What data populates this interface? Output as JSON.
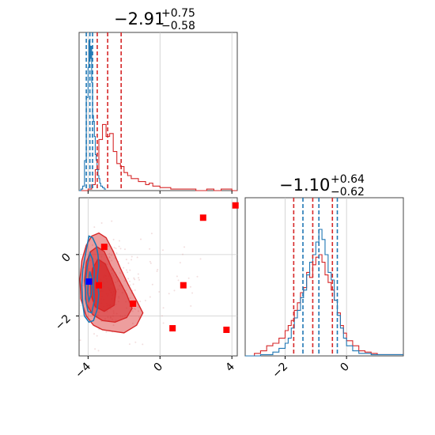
{
  "chart_data": {
    "type": "corner",
    "colors": {
      "red": "#d62728",
      "blue": "#1f77b4",
      "marker_red": "#ff0000",
      "marker_blue": "#0000ff",
      "grid": "#cccccc"
    },
    "param_x": {
      "title": {
        "median": "−2.91",
        "plus": "+0.75",
        "minus": "−0.58"
      },
      "range": [
        -4.5,
        4.3
      ],
      "ticks": [
        -4,
        0,
        4
      ],
      "tick_labels": [
        "−4",
        "0",
        "4"
      ],
      "red_quantiles": [
        -3.49,
        -2.91,
        -2.16
      ],
      "blue_quantiles": [
        -4.1,
        -3.9,
        -3.75
      ],
      "red_hist": {
        "x": [
          -4.5,
          -4.2,
          -4.0,
          -3.8,
          -3.6,
          -3.4,
          -3.2,
          -3.0,
          -2.8,
          -2.6,
          -2.4,
          -2.2,
          -2.0,
          -1.8,
          -1.6,
          -1.4,
          -1.2,
          -1.0,
          -0.8,
          -0.6,
          -0.4,
          -0.2,
          0.0,
          0.2,
          0.6,
          1.0,
          1.4,
          2.0,
          2.6,
          3.0,
          3.4,
          4.0,
          4.3
        ],
        "y": [
          0,
          0,
          0.01,
          0.04,
          0.14,
          0.34,
          0.44,
          0.36,
          0.38,
          0.26,
          0.18,
          0.16,
          0.12,
          0.1,
          0.08,
          0.08,
          0.06,
          0.06,
          0.04,
          0.05,
          0.03,
          0.03,
          0.02,
          0.02,
          0.01,
          0.01,
          0.01,
          0.0,
          0.01,
          0.0,
          0.01,
          0,
          0
        ]
      },
      "blue_hist": {
        "x": [
          -4.5,
          -4.4,
          -4.3,
          -4.2,
          -4.1,
          -4.0,
          -3.95,
          -3.9,
          -3.85,
          -3.8,
          -3.75,
          -3.7,
          -3.65,
          -3.6,
          -3.55,
          -3.5,
          -3.45,
          -3.4,
          -3.35,
          -3.3,
          -3.2,
          -3.1,
          -3.0
        ],
        "y": [
          0,
          0.01,
          0.03,
          0.2,
          0.62,
          0.82,
          1.0,
          0.88,
          0.96,
          0.72,
          0.5,
          0.46,
          0.36,
          0.24,
          0.2,
          0.14,
          0.1,
          0.08,
          0.05,
          0.03,
          0.02,
          0.01,
          0
        ]
      }
    },
    "param_y": {
      "title": {
        "median": "−1.10",
        "plus": "+0.64",
        "minus": "−0.62"
      },
      "range": [
        -3.3,
        1.85
      ],
      "ticks": [
        -2,
        0
      ],
      "tick_labels": [
        "−2",
        "0"
      ],
      "red_quantiles": [
        -1.72,
        -1.1,
        -0.46
      ],
      "blue_quantiles": [
        -1.42,
        -0.9,
        -0.3
      ],
      "red_hist": {
        "x": [
          -3.3,
          -3.0,
          -2.8,
          -2.6,
          -2.4,
          -2.2,
          -2.0,
          -1.9,
          -1.8,
          -1.7,
          -1.6,
          -1.5,
          -1.4,
          -1.3,
          -1.2,
          -1.1,
          -1.0,
          -0.9,
          -0.8,
          -0.7,
          -0.6,
          -0.5,
          -0.4,
          -0.3,
          -0.2,
          -0.1,
          0.0,
          0.2,
          0.4,
          0.6,
          0.8,
          1.0,
          1.4,
          1.85
        ],
        "y": [
          0,
          0.02,
          0.04,
          0.08,
          0.1,
          0.14,
          0.2,
          0.24,
          0.28,
          0.36,
          0.42,
          0.5,
          0.54,
          0.66,
          0.62,
          0.72,
          0.78,
          0.8,
          0.74,
          0.64,
          0.58,
          0.52,
          0.44,
          0.34,
          0.24,
          0.18,
          0.12,
          0.08,
          0.04,
          0.03,
          0.02,
          0.01,
          0.01,
          0
        ]
      },
      "blue_hist": {
        "x": [
          -3.3,
          -2.8,
          -2.4,
          -2.2,
          -2.0,
          -1.9,
          -1.8,
          -1.7,
          -1.6,
          -1.5,
          -1.4,
          -1.3,
          -1.2,
          -1.1,
          -1.0,
          -0.9,
          -0.8,
          -0.7,
          -0.6,
          -0.5,
          -0.4,
          -0.3,
          -0.2,
          -0.1,
          0.0,
          0.2,
          0.4,
          0.8,
          1.85
        ],
        "y": [
          0,
          0.01,
          0.03,
          0.06,
          0.1,
          0.14,
          0.22,
          0.3,
          0.36,
          0.46,
          0.52,
          0.64,
          0.74,
          0.8,
          0.9,
          1.0,
          0.92,
          0.8,
          0.66,
          0.6,
          0.44,
          0.32,
          0.22,
          0.14,
          0.08,
          0.04,
          0.02,
          0.01,
          0
        ]
      }
    },
    "scatter_red_markers": [
      [
        -3.4,
        -1.0
      ],
      [
        -3.1,
        0.25
      ],
      [
        -1.5,
        -1.6
      ],
      [
        0.7,
        -2.4
      ],
      [
        1.3,
        -1.0
      ],
      [
        2.4,
        1.2
      ],
      [
        3.7,
        -2.45
      ],
      [
        4.2,
        1.6
      ]
    ],
    "scatter_blue_markers": [
      [
        -3.95,
        -0.88
      ]
    ],
    "red_contours": [
      [
        [
          -4.45,
          -0.8
        ],
        [
          -4.35,
          -0.2
        ],
        [
          -4.1,
          0.3
        ],
        [
          -3.8,
          0.6
        ],
        [
          -3.4,
          0.7
        ],
        [
          -3.0,
          0.55
        ],
        [
          -2.6,
          0.1
        ],
        [
          -2.2,
          -0.45
        ],
        [
          -1.75,
          -1.0
        ],
        [
          -1.3,
          -1.5
        ],
        [
          -0.95,
          -1.9
        ],
        [
          -1.3,
          -2.3
        ],
        [
          -2.0,
          -2.55
        ],
        [
          -2.6,
          -2.5
        ],
        [
          -3.2,
          -2.45
        ],
        [
          -3.7,
          -2.3
        ],
        [
          -4.1,
          -2.0
        ],
        [
          -4.4,
          -1.45
        ]
      ],
      [
        [
          -4.2,
          -0.85
        ],
        [
          -4.1,
          -0.25
        ],
        [
          -3.85,
          0.1
        ],
        [
          -3.5,
          0.25
        ],
        [
          -3.1,
          0.1
        ],
        [
          -2.75,
          -0.35
        ],
        [
          -2.3,
          -0.8
        ],
        [
          -1.85,
          -1.3
        ],
        [
          -1.55,
          -1.75
        ],
        [
          -1.85,
          -2.05
        ],
        [
          -2.5,
          -2.2
        ],
        [
          -3.2,
          -2.15
        ],
        [
          -3.75,
          -1.95
        ],
        [
          -4.1,
          -1.6
        ]
      ],
      [
        [
          -3.85,
          -0.85
        ],
        [
          -3.75,
          -0.45
        ],
        [
          -3.45,
          -0.15
        ],
        [
          -3.05,
          -0.3
        ],
        [
          -2.7,
          -0.75
        ],
        [
          -2.45,
          -1.2
        ],
        [
          -2.55,
          -1.65
        ],
        [
          -3.1,
          -1.85
        ],
        [
          -3.6,
          -1.7
        ],
        [
          -3.85,
          -1.3
        ]
      ]
    ],
    "blue_contours": [
      [
        [
          -4.35,
          -1.0
        ],
        [
          -4.3,
          -0.5
        ],
        [
          -4.15,
          0.0
        ],
        [
          -3.95,
          0.6
        ],
        [
          -3.75,
          0.55
        ],
        [
          -3.55,
          0.3
        ],
        [
          -3.45,
          0.0
        ],
        [
          -3.4,
          -0.35
        ],
        [
          -3.5,
          -0.8
        ],
        [
          -3.4,
          -1.3
        ],
        [
          -3.5,
          -1.8
        ],
        [
          -3.7,
          -2.15
        ],
        [
          -3.95,
          -2.2
        ],
        [
          -4.2,
          -2.0
        ],
        [
          -4.3,
          -1.6
        ]
      ],
      [
        [
          -4.15,
          -0.9
        ],
        [
          -4.05,
          -0.4
        ],
        [
          -3.9,
          0.05
        ],
        [
          -3.75,
          -0.15
        ],
        [
          -3.65,
          -0.55
        ],
        [
          -3.7,
          -1.0
        ],
        [
          -3.65,
          -1.5
        ],
        [
          -3.8,
          -1.9
        ],
        [
          -4.0,
          -1.85
        ],
        [
          -4.15,
          -1.45
        ]
      ],
      [
        [
          -4.0,
          -1.0
        ],
        [
          -3.9,
          -0.55
        ],
        [
          -3.8,
          -0.8
        ],
        [
          -3.82,
          -1.3
        ],
        [
          -3.95,
          -1.5
        ],
        [
          -4.02,
          -1.25
        ]
      ]
    ]
  }
}
